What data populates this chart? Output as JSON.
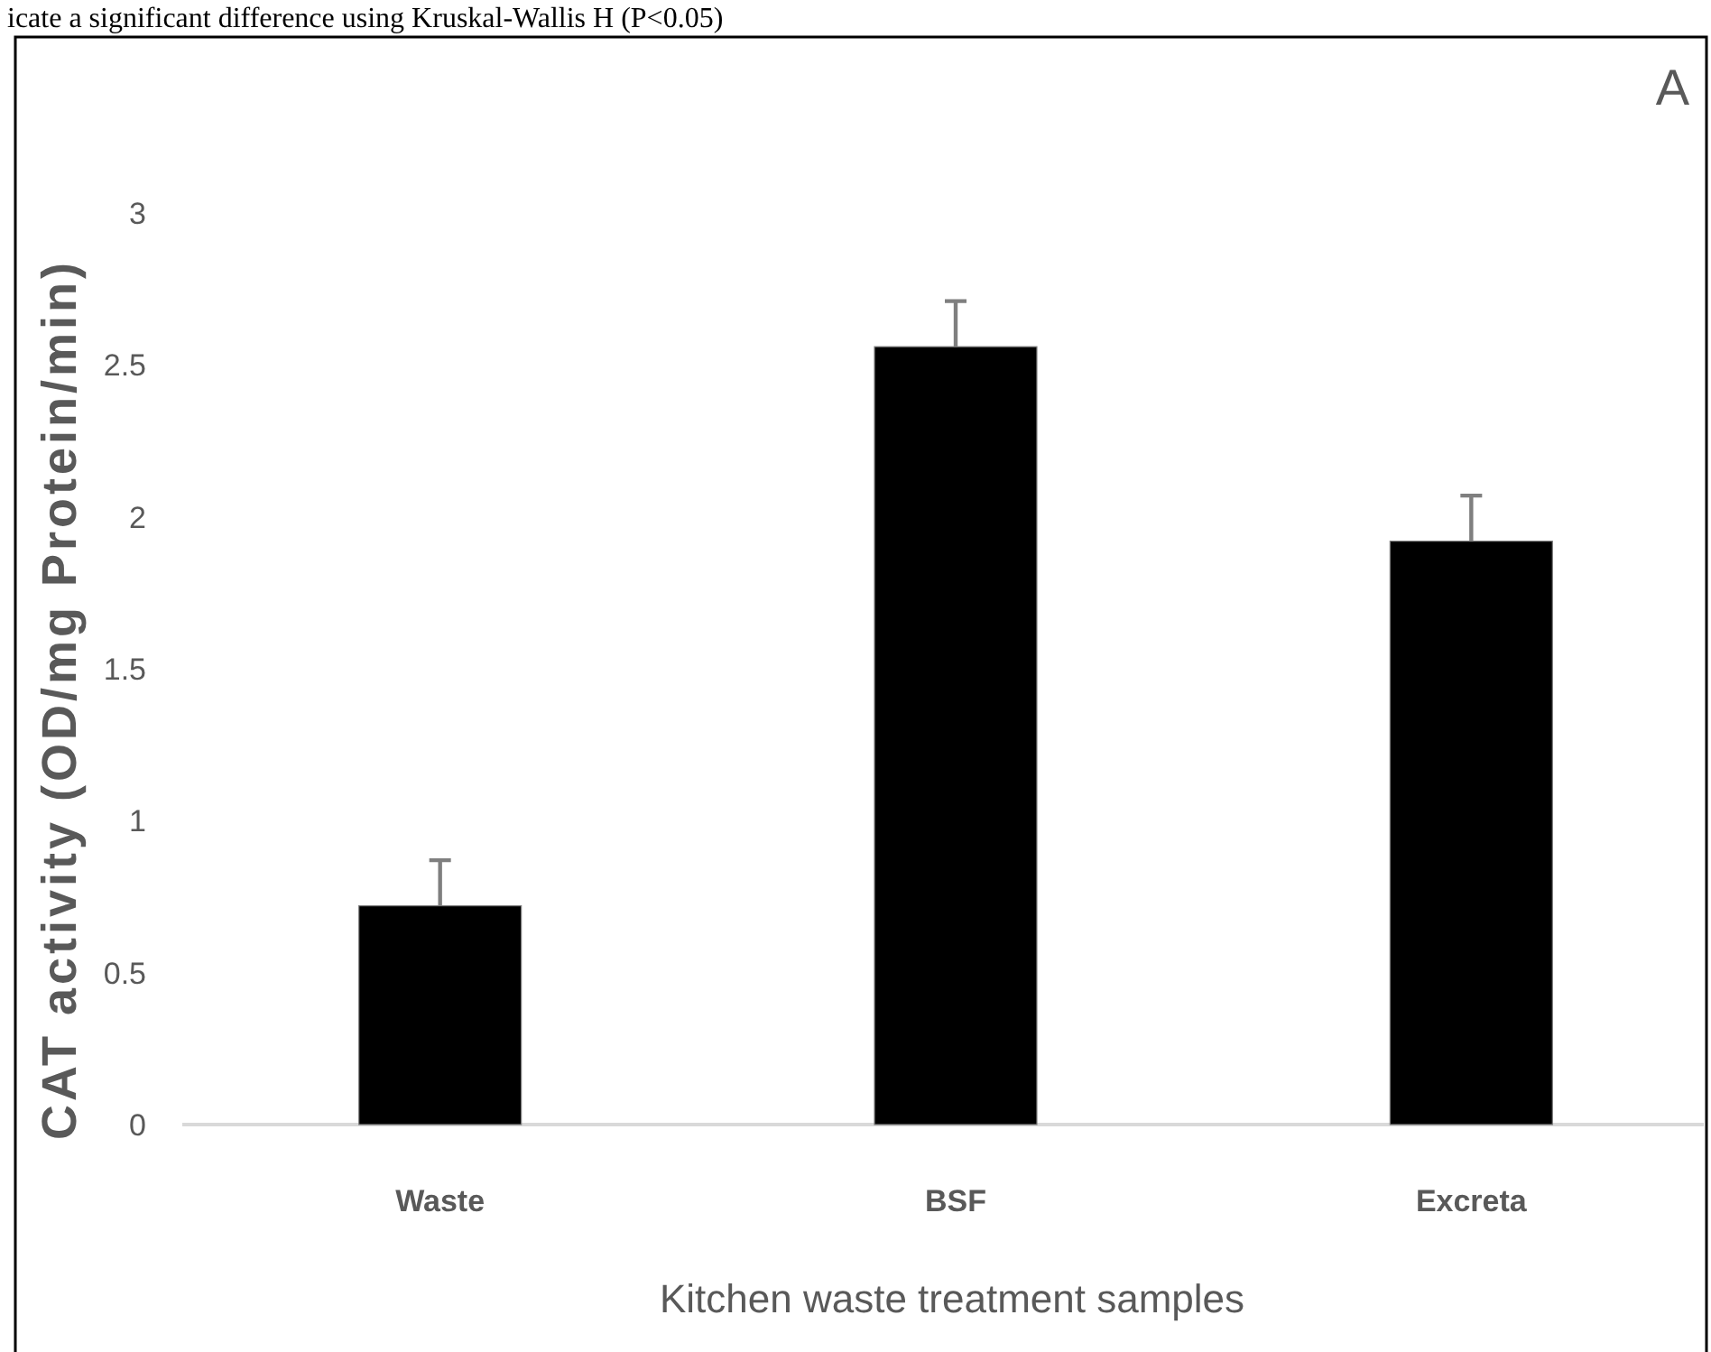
{
  "chart_data": {
    "type": "bar",
    "categories": [
      "Waste",
      "BSF",
      "Excreta"
    ],
    "values": [
      0.72,
      2.56,
      1.92
    ],
    "color": "#000000",
    "errors": [
      [
        0.72,
        0.87
      ],
      [
        2.56,
        2.71
      ],
      [
        1.92,
        2.07
      ]
    ],
    "ylim": [
      0,
      3
    ],
    "yticks": [
      0,
      0.5,
      1,
      1.5,
      2,
      2.5,
      3
    ],
    "xlabel": "Kitchen waste treatment samples",
    "ylabel": "CAT activity (OD/mg Protein/min)",
    "annotations": [
      "icate a significant difference using Kruskal-Wallis H (P<0.05)",
      "A"
    ]
  }
}
